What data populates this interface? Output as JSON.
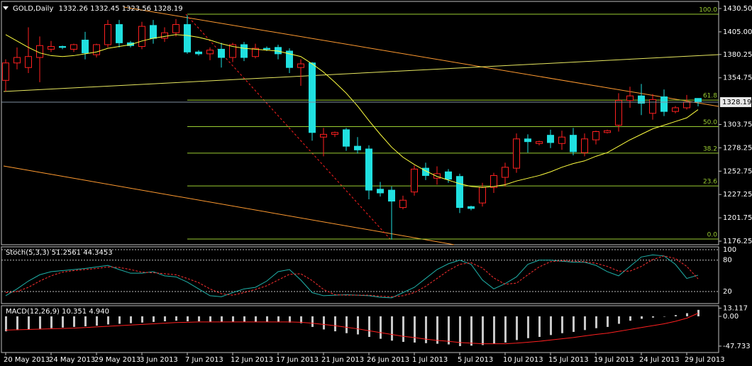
{
  "chart_data": {
    "type": "candlestick",
    "title": "GOLD,Daily",
    "categories": [
      "20 May 2013",
      null,
      null,
      null,
      "24 May 2013",
      null,
      null,
      null,
      "29 May 2013",
      null,
      null,
      null,
      "3 Jun 2013",
      null,
      null,
      null,
      "7 Jun 2013",
      null,
      null,
      null,
      "12 Jun 2013",
      null,
      null,
      null,
      "17 Jun 2013",
      null,
      null,
      null,
      "21 Jun 2013",
      null,
      null,
      null,
      "26 Jun 2013",
      null,
      null,
      null,
      "1 Jul 2013",
      null,
      null,
      null,
      "5 Jul 2013",
      null,
      null,
      null,
      "10 Jul 2013",
      null,
      null,
      null,
      "15 Jul 2013",
      null,
      null,
      null,
      "19 Jul 2013",
      null,
      null,
      null,
      "24 Jul 2013",
      null,
      null,
      null,
      "29 Jul 2013",
      null
    ],
    "ohlc": [
      [
        1352,
        1375,
        1340,
        1371
      ],
      [
        1371,
        1388,
        1364,
        1377
      ],
      [
        1366,
        1410,
        1360,
        1378
      ],
      [
        1377,
        1400,
        1350,
        1390
      ],
      [
        1386,
        1395,
        1383,
        1389
      ],
      [
        1389,
        1390,
        1386,
        1388
      ],
      [
        1386,
        1392,
        1383,
        1391
      ],
      [
        1396,
        1405,
        1375,
        1382
      ],
      [
        1380,
        1392,
        1377,
        1391
      ],
      [
        1391,
        1418,
        1388,
        1413
      ],
      [
        1413,
        1418,
        1388,
        1393
      ],
      [
        1393,
        1395,
        1388,
        1390
      ],
      [
        1389,
        1416,
        1386,
        1411
      ],
      [
        1412,
        1418,
        1392,
        1398
      ],
      [
        1398,
        1410,
        1394,
        1404
      ],
      [
        1404,
        1419,
        1400,
        1413
      ],
      [
        1413,
        1423,
        1381,
        1383
      ],
      [
        1383,
        1385,
        1379,
        1381
      ],
      [
        1381,
        1388,
        1374,
        1385
      ],
      [
        1386,
        1393,
        1366,
        1377
      ],
      [
        1377,
        1393,
        1372,
        1391
      ],
      [
        1391,
        1394,
        1373,
        1377
      ],
      [
        1378,
        1392,
        1376,
        1387
      ],
      [
        1387,
        1389,
        1384,
        1386
      ],
      [
        1388,
        1391,
        1375,
        1381
      ],
      [
        1384,
        1387,
        1360,
        1366
      ],
      [
        1366,
        1375,
        1346,
        1370
      ],
      [
        1371,
        1372,
        1286,
        1295
      ],
      [
        1290,
        1300,
        1269,
        1293
      ],
      [
        1293,
        1296,
        1290,
        1295
      ],
      [
        1298,
        1300,
        1275,
        1280
      ],
      [
        1280,
        1290,
        1272,
        1276
      ],
      [
        1277,
        1281,
        1222,
        1232
      ],
      [
        1233,
        1241,
        1225,
        1229
      ],
      [
        1232,
        1236,
        1178,
        1220
      ],
      [
        1213,
        1226,
        1211,
        1221
      ],
      [
        1230,
        1259,
        1226,
        1255
      ],
      [
        1256,
        1262,
        1243,
        1248
      ],
      [
        1245,
        1258,
        1238,
        1250
      ],
      [
        1252,
        1255,
        1240,
        1244
      ],
      [
        1247,
        1250,
        1207,
        1213
      ],
      [
        1214,
        1215,
        1210,
        1212
      ],
      [
        1218,
        1240,
        1214,
        1235
      ],
      [
        1235,
        1251,
        1229,
        1248
      ],
      [
        1246,
        1262,
        1236,
        1257
      ],
      [
        1256,
        1294,
        1251,
        1288
      ],
      [
        1288,
        1293,
        1273,
        1285
      ],
      [
        1283,
        1286,
        1281,
        1285
      ],
      [
        1292,
        1298,
        1278,
        1284
      ],
      [
        1283,
        1297,
        1276,
        1290
      ],
      [
        1292,
        1300,
        1270,
        1274
      ],
      [
        1273,
        1294,
        1269,
        1288
      ],
      [
        1287,
        1297,
        1282,
        1296
      ],
      [
        1295,
        1298,
        1294,
        1297
      ],
      [
        1303,
        1338,
        1296,
        1330
      ],
      [
        1330,
        1345,
        1322,
        1335
      ],
      [
        1335,
        1348,
        1314,
        1327
      ],
      [
        1316,
        1337,
        1309,
        1331
      ],
      [
        1334,
        1342,
        1313,
        1318
      ],
      [
        1318,
        1324,
        1316,
        1322
      ],
      [
        1322,
        1336,
        1320,
        1328
      ],
      [
        1332.26,
        1332.45,
        1323.56,
        1328.19
      ]
    ],
    "colors": {
      "up": "#ff2020",
      "down": "#20e0e0",
      "price_line": "#8090a0",
      "axis": "#c0c0c0"
    },
    "ylim": [
      1172.37,
      1438.25
    ],
    "yticks": [
      {
        "value": 1430.5,
        "label": "1430.50"
      },
      {
        "value": 1405,
        "label": "1405.00"
      },
      {
        "value": 1380.25,
        "label": "1380.25"
      },
      {
        "value": 1354.75,
        "label": "1354.75"
      },
      {
        "value": 1303.75,
        "label": "1303.75"
      },
      {
        "value": 1278.25,
        "label": "1278.25"
      },
      {
        "value": 1252.75,
        "label": "1252.75"
      },
      {
        "value": 1227.25,
        "label": "1227.25"
      },
      {
        "value": 1201.75,
        "label": "1201.75"
      },
      {
        "value": 1176.25,
        "label": "1176.25"
      }
    ],
    "ma": {
      "color": "#ffff40",
      "values": [
        1402,
        1395,
        1388,
        1382,
        1379,
        1378,
        1379,
        1381,
        1383,
        1387,
        1389,
        1391,
        1395,
        1398,
        1400,
        1402,
        1401,
        1399,
        1396,
        1392,
        1389,
        1387,
        1386,
        1385,
        1384,
        1381,
        1378,
        1370,
        1361,
        1350,
        1338,
        1324,
        1308,
        1293,
        1279,
        1268,
        1260,
        1253,
        1247,
        1243,
        1239,
        1236,
        1235,
        1236,
        1238,
        1242,
        1245,
        1248,
        1252,
        1257,
        1261,
        1264,
        1269,
        1273,
        1280,
        1287,
        1293,
        1299,
        1303,
        1307,
        1311,
        1320
      ]
    },
    "fibo": {
      "color": "#9acd32",
      "high": 1424.3,
      "low": 1178.6,
      "start": 16,
      "levels": [
        {
          "value": 100,
          "label": "100.0"
        },
        61.8,
        {
          "value": 50,
          "label": "50.0"
        },
        38.2,
        23.6,
        {
          "value": 0,
          "label": "0.0"
        }
      ]
    },
    "stoch": {
      "title": "Stoch(5,3,3)",
      "ylim": [
        -3,
        104
      ],
      "yticks": [
        100,
        80,
        20
      ],
      "main_color": "#20b2aa",
      "signal_color": "#ff3030",
      "main": [
        12,
        25,
        40,
        52,
        58,
        60,
        62,
        64,
        67,
        70,
        62,
        55,
        55,
        58,
        50,
        48,
        38,
        25,
        12,
        10,
        18,
        25,
        28,
        40,
        58,
        62,
        42,
        18,
        12,
        13,
        14,
        13,
        12,
        9,
        8,
        18,
        28,
        45,
        62,
        73,
        80,
        72,
        42,
        25,
        35,
        48,
        72,
        80,
        80,
        78,
        76,
        76,
        70,
        58,
        50,
        68,
        86,
        90,
        88,
        72,
        45,
        51.2561
      ],
      "signal": [
        18,
        20,
        28,
        40,
        50,
        57,
        60,
        62,
        64,
        67,
        66,
        62,
        57,
        56,
        54,
        52,
        45,
        37,
        25,
        16,
        13,
        18,
        24,
        31,
        42,
        53,
        54,
        41,
        24,
        14,
        13,
        13,
        13,
        11,
        10,
        12,
        18,
        30,
        45,
        60,
        72,
        75,
        65,
        46,
        34,
        36,
        52,
        67,
        77,
        79,
        78,
        77,
        74,
        68,
        59,
        59,
        68,
        81,
        88,
        83,
        68,
        44.3453
      ]
    },
    "macd": {
      "title": "MACD(12,26,9)",
      "ylim": [
        -58,
        17
      ],
      "yticks": [
        13.117,
        {
          "value": 0,
          "label": "0.00"
        },
        -47.733
      ],
      "bar_color": "#c8c8c8",
      "signal_color": "#ff2020",
      "signal_last_label": "4.940",
      "histogram": [
        -24,
        -22,
        -21,
        -20,
        -19,
        -18,
        -17,
        -16,
        -15,
        -13,
        -12,
        -11,
        -10,
        -9,
        -8,
        -7,
        -8,
        -8,
        -9,
        -9,
        -9,
        -9,
        -9,
        -9,
        -9,
        -10,
        -11,
        -17,
        -21,
        -24,
        -27,
        -29,
        -33,
        -36,
        -39,
        -41,
        -42,
        -43,
        -44,
        -45,
        -47.733,
        -47,
        -46,
        -44,
        -42,
        -38,
        -35,
        -33,
        -30,
        -27,
        -25,
        -22,
        -19,
        -17,
        -12,
        -7,
        -4,
        -2,
        0,
        2,
        5,
        10.351
      ],
      "signal": [
        -22,
        -21.5,
        -21,
        -20.5,
        -20,
        -19.5,
        -19,
        -18,
        -17,
        -16,
        -15,
        -14,
        -13,
        -12,
        -11,
        -10,
        -9.5,
        -9,
        -9,
        -9,
        -9,
        -9,
        -9,
        -9,
        -9,
        -9,
        -9.5,
        -11,
        -13,
        -15,
        -17.5,
        -20,
        -23,
        -26,
        -29,
        -32,
        -34,
        -36.5,
        -38.5,
        -40,
        -42,
        -43,
        -44,
        -44,
        -44,
        -43,
        -41.5,
        -40,
        -38,
        -36,
        -34,
        -31.5,
        -29,
        -27,
        -24,
        -21,
        -18,
        -15,
        -12,
        -8,
        -3,
        4.94
      ]
    }
  }
}
